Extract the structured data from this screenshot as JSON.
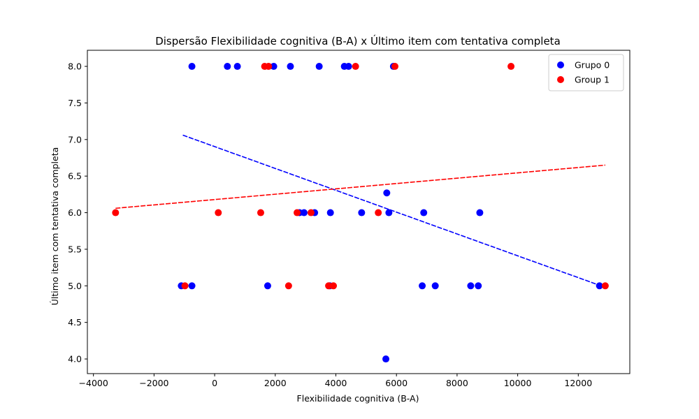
{
  "chart_data": {
    "type": "scatter",
    "title": "Dispersão Flexibilidade cognitiva (B-A) x Último item com tentativa completa",
    "xlabel": "Flexibilidade cognitiva (B-A)",
    "ylabel": "Último item com tentativa completa",
    "xlim": [
      -4200,
      13700
    ],
    "ylim": [
      3.8,
      8.22
    ],
    "x_ticks": [
      -4000,
      -2000,
      0,
      2000,
      4000,
      6000,
      8000,
      10000,
      12000
    ],
    "y_ticks": [
      4.0,
      4.5,
      5.0,
      5.5,
      6.0,
      6.5,
      7.0,
      7.5,
      8.0
    ],
    "x_tick_labels": [
      "−4000",
      "−2000",
      "0",
      "2000",
      "4000",
      "6000",
      "8000",
      "10000",
      "12000"
    ],
    "y_tick_labels": [
      "4.0",
      "4.5",
      "5.0",
      "5.5",
      "6.0",
      "6.5",
      "7.0",
      "7.5",
      "8.0"
    ],
    "grid": false,
    "legend_position": "top-right",
    "series": [
      {
        "name": "Grupo 0",
        "color": "#0000ff",
        "points": [
          [
            -750,
            8
          ],
          [
            420,
            8
          ],
          [
            750,
            8
          ],
          [
            1950,
            8
          ],
          [
            2500,
            8
          ],
          [
            3450,
            8
          ],
          [
            4280,
            8
          ],
          [
            4420,
            8
          ],
          [
            5900,
            8
          ],
          [
            5680,
            6.27
          ],
          [
            2800,
            6
          ],
          [
            2950,
            6
          ],
          [
            3300,
            6
          ],
          [
            3820,
            6
          ],
          [
            4850,
            6
          ],
          [
            5750,
            6
          ],
          [
            6900,
            6
          ],
          [
            8750,
            6
          ],
          [
            -1100,
            5
          ],
          [
            -750,
            5
          ],
          [
            1750,
            5
          ],
          [
            3800,
            5
          ],
          [
            6850,
            5
          ],
          [
            7280,
            5
          ],
          [
            8450,
            5
          ],
          [
            8700,
            5
          ],
          [
            12700,
            5
          ],
          [
            5650,
            4
          ]
        ],
        "trend": {
          "x": [
            -1050,
            12750
          ],
          "y": [
            7.06,
            5.0
          ]
        }
      },
      {
        "name": "Group 1",
        "color": "#ff0000",
        "points": [
          [
            1650,
            8
          ],
          [
            1780,
            8
          ],
          [
            4650,
            8
          ],
          [
            5950,
            8
          ],
          [
            9780,
            8
          ],
          [
            -3270,
            6
          ],
          [
            120,
            6
          ],
          [
            1520,
            6
          ],
          [
            2720,
            6
          ],
          [
            3180,
            6
          ],
          [
            5400,
            6
          ],
          [
            -980,
            5
          ],
          [
            2440,
            5
          ],
          [
            3760,
            5
          ],
          [
            3920,
            5
          ],
          [
            12890,
            5
          ]
        ],
        "trend": {
          "x": [
            -3270,
            12890
          ],
          "y": [
            6.06,
            6.65
          ]
        }
      }
    ]
  }
}
